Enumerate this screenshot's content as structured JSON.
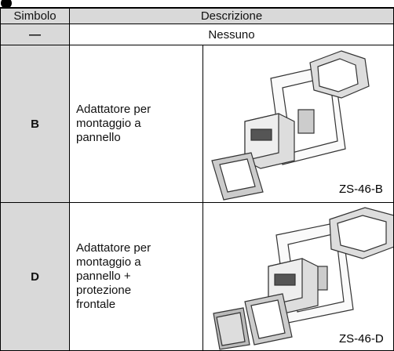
{
  "header": {
    "columns": [
      "Simbolo",
      "Descrizione"
    ]
  },
  "table": {
    "rows": [
      {
        "symbol": "—",
        "description": "Nessuno"
      },
      {
        "symbol": "B",
        "description": [
          "Adattatore per",
          "montaggio a",
          "pannello"
        ],
        "part_number": "ZS-46-B"
      },
      {
        "symbol": "D",
        "description": [
          "Adattatore per",
          "montaggio a",
          "pannello +",
          "protezione",
          "frontale"
        ],
        "part_number": "ZS-46-D"
      }
    ]
  }
}
